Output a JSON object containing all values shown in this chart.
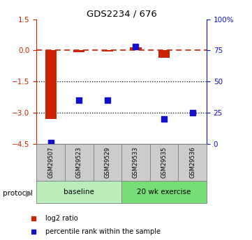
{
  "title": "GDS2234 / 676",
  "samples": [
    "GSM29507",
    "GSM29523",
    "GSM29529",
    "GSM29533",
    "GSM29535",
    "GSM29536"
  ],
  "log2_ratio": [
    -3.3,
    -0.08,
    -0.05,
    0.15,
    -0.35,
    0.02
  ],
  "percentile_rank": [
    1,
    35,
    35,
    78,
    20,
    25
  ],
  "ylim_left": [
    -4.5,
    1.5
  ],
  "ylim_right": [
    0,
    100
  ],
  "left_ticks": [
    -4.5,
    -3.0,
    -1.5,
    0.0,
    1.5
  ],
  "right_ticks": [
    0,
    25,
    50,
    75,
    100
  ],
  "bar_color": "#CC2200",
  "dot_color": "#1111CC",
  "baseline_color": "#BBEEBB",
  "exercise_color": "#77DD77",
  "label_box_color": "#CCCCCC",
  "protocol_label": "protocol",
  "group_labels": [
    "baseline",
    "20 wk exercise"
  ],
  "legend_log2": "log2 ratio",
  "legend_pct": "percentile rank within the sample"
}
